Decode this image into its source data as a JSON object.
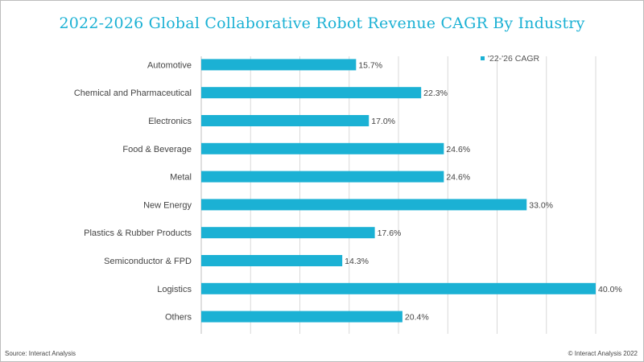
{
  "chart_data": {
    "type": "bar",
    "orientation": "horizontal",
    "title": "2022-2026 Global Collaborative Robot Revenue CAGR By Industry",
    "xlabel": "",
    "ylabel": "",
    "categories": [
      "Automotive",
      "Chemical and Pharmaceutical",
      "Electronics",
      "Food & Beverage",
      "Metal",
      "New Energy",
      "Plastics & Rubber Products",
      "Semiconductor & FPD",
      "Logistics",
      "Others"
    ],
    "series": [
      {
        "name": "'22-'26 CAGR",
        "values": [
          15.7,
          22.3,
          17.0,
          24.6,
          24.6,
          33.0,
          17.6,
          14.3,
          40.0,
          20.4
        ],
        "labels": [
          "15.7%",
          "22.3%",
          "17.0%",
          "24.6%",
          "24.6%",
          "33.0%",
          "17.6%",
          "14.3%",
          "40.0%",
          "20.4%"
        ],
        "color": "#1bb1d4"
      }
    ],
    "xlim": [
      0,
      42.5
    ],
    "grid": true,
    "legend_position": "top-right"
  },
  "footer": {
    "source": "Source: Interact Analysis",
    "copyright": "© Interact Analysis 2022"
  },
  "colors": {
    "title": "#1bb1d4",
    "bar": "#1bb1d4",
    "grid": "#d9d9d9"
  }
}
